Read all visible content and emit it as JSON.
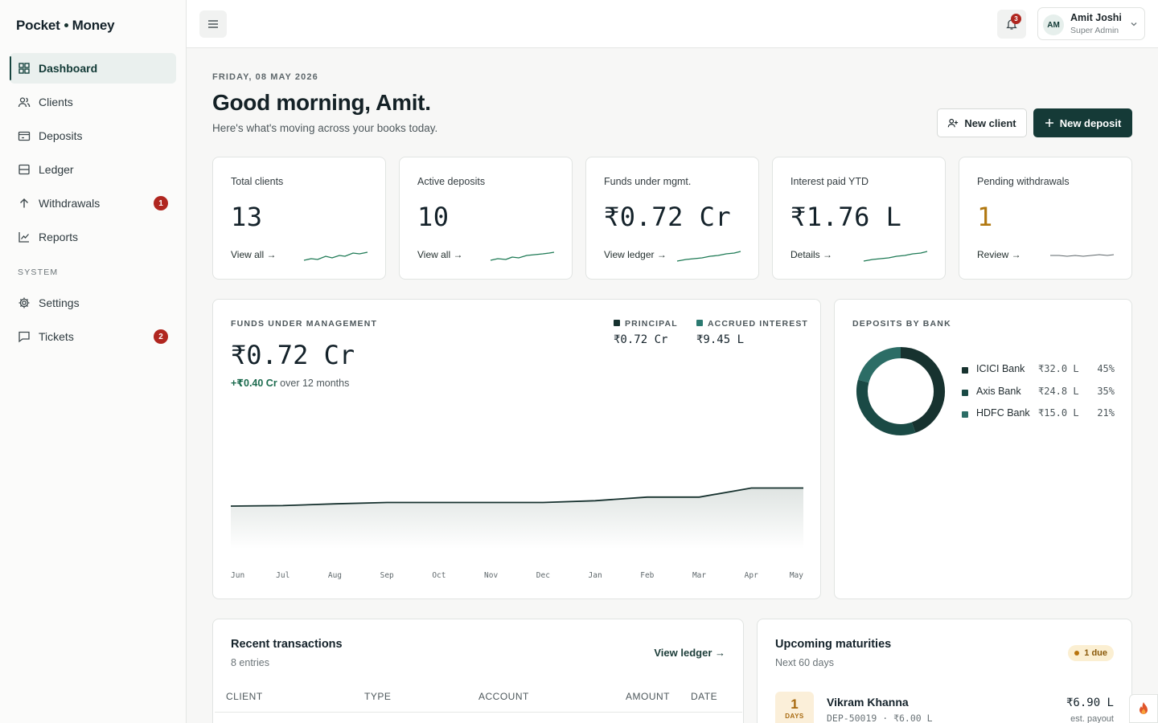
{
  "brand": {
    "left": "Pocket",
    "right": "Money"
  },
  "nav": {
    "items": [
      {
        "label": "Dashboard"
      },
      {
        "label": "Clients"
      },
      {
        "label": "Deposits"
      },
      {
        "label": "Ledger"
      },
      {
        "label": "Withdrawals",
        "badge": "1"
      },
      {
        "label": "Reports"
      }
    ],
    "system_label": "SYSTEM",
    "system_items": [
      {
        "label": "Settings"
      },
      {
        "label": "Tickets",
        "badge": "2"
      }
    ]
  },
  "topbar": {
    "notifications": "3",
    "user": {
      "initials": "AM",
      "name": "Amit Joshi",
      "role": "Super Admin"
    }
  },
  "header": {
    "date": "FRIDAY, 08 MAY 2026",
    "greeting": "Good morning, Amit.",
    "subtitle": "Here's what's moving across your books today.",
    "new_client": "New client",
    "new_deposit": "New deposit"
  },
  "stats": [
    {
      "label": "Total clients",
      "value": "13",
      "link": "View all →"
    },
    {
      "label": "Active deposits",
      "value": "10",
      "link": "View all →"
    },
    {
      "label": "Funds under mgmt.",
      "value": "₹0.72 Cr",
      "link": "View ledger →"
    },
    {
      "label": "Interest paid YTD",
      "value": "₹1.76 L",
      "link": "Details →"
    },
    {
      "label": "Pending withdrawals",
      "value": "1",
      "link": "Review →"
    }
  ],
  "fum": {
    "title": "FUNDS UNDER MANAGEMENT",
    "value": "₹0.72 Cr",
    "delta": "+₹0.40 Cr",
    "delta_suffix": " over 12 months",
    "legend": [
      {
        "label": "PRINCIPAL",
        "value": "₹0.72 Cr",
        "color": "#17322f"
      },
      {
        "label": "ACCRUED INTEREST",
        "value": "₹9.45 L",
        "color": "#2c7a71"
      }
    ]
  },
  "chart_data": {
    "type": "area",
    "categories": [
      "Jun",
      "Jul",
      "Aug",
      "Sep",
      "Oct",
      "Nov",
      "Dec",
      "Jan",
      "Feb",
      "Mar",
      "Apr",
      "May"
    ],
    "series": [
      {
        "name": "PRINCIPAL",
        "values": [
          0.32,
          0.33,
          0.37,
          0.4,
          0.4,
          0.4,
          0.4,
          0.44,
          0.52,
          0.52,
          0.72,
          0.72
        ]
      }
    ],
    "ylim": [
      0,
      1.6
    ],
    "grid": false
  },
  "banks": {
    "title": "DEPOSITS BY BANK",
    "items": [
      {
        "name": "ICICI Bank",
        "amount": "₹32.0 L",
        "pct": "45%",
        "share": 45,
        "color": "#17322f"
      },
      {
        "name": "Axis Bank",
        "amount": "₹24.8 L",
        "pct": "35%",
        "share": 35,
        "color": "#1a4a45"
      },
      {
        "name": "HDFC Bank",
        "amount": "₹15.0 L",
        "pct": "21%",
        "share": 21,
        "color": "#2c6d66"
      }
    ]
  },
  "transactions": {
    "title": "Recent transactions",
    "count": "8 entries",
    "link": "View ledger →",
    "columns": [
      "CLIENT",
      "TYPE",
      "ACCOUNT",
      "AMOUNT",
      "DATE"
    ]
  },
  "maturities": {
    "title": "Upcoming maturities",
    "subtitle": "Next 60 days",
    "due": "1 due",
    "item": {
      "days": "1",
      "days_label": "DAYS",
      "name": "Vikram Khanna",
      "ref": "DEP-50019 · ₹6.00 L",
      "amount": "₹6.90 L",
      "note": "est. payout"
    }
  }
}
